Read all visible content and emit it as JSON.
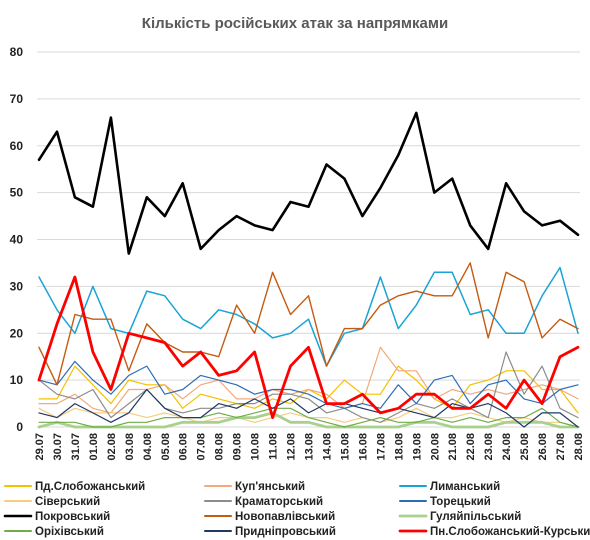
{
  "chart_data": {
    "type": "line",
    "title": "Кількість російських атак за напрямками",
    "xlabel": "",
    "ylabel": "",
    "ylim": [
      0,
      80
    ],
    "yticks": [
      0,
      10,
      20,
      30,
      40,
      50,
      60,
      70,
      80
    ],
    "grid": true,
    "legend_position": "bottom",
    "x": [
      "29.07",
      "30.07",
      "31.07",
      "01.08",
      "02.08",
      "03.08",
      "04.08",
      "05.08",
      "06.08",
      "07.08",
      "08.08",
      "09.08",
      "10.08",
      "11.08",
      "12.08",
      "13.08",
      "14.08",
      "15.08",
      "16.08",
      "17.08",
      "18.08",
      "19.08",
      "20.08",
      "21.08",
      "22.08",
      "23.08",
      "24.08",
      "25.08",
      "26.08",
      "27.08",
      "28.08"
    ],
    "x_tick_labels": [
      "29.07",
      "30.07",
      "31.07",
      "01.08",
      "02.08",
      "03.08",
      "04.08",
      "05.08",
      "06.08",
      "07.08",
      "08.08",
      "09.08",
      "10.08",
      "11.08",
      "12.08",
      "13.08",
      "14.08",
      "15.08",
      "16.08",
      "17.08",
      "18.08",
      "19.08",
      "20.08",
      "21.08",
      "22.08",
      "23.08",
      "24.08",
      "25.08",
      "26.08",
      "27.08",
      "28.08"
    ],
    "series": [
      {
        "name": "Пд.Слобожанський",
        "color": "#f5c000",
        "width": 1.2,
        "values": [
          6,
          6,
          13,
          9,
          5,
          10,
          9,
          9,
          4,
          7,
          6,
          5,
          4,
          6,
          5,
          8,
          6,
          10,
          7,
          7,
          13,
          10,
          6,
          4,
          9,
          10,
          12,
          12,
          8,
          8,
          3
        ]
      },
      {
        "name": "Куп'янський",
        "color": "#f2a97c",
        "width": 1.2,
        "values": [
          5,
          5,
          7,
          4,
          3,
          8,
          8,
          9,
          6,
          9,
          10,
          6,
          6,
          8,
          7,
          8,
          7,
          4,
          5,
          17,
          12,
          12,
          6,
          8,
          7,
          8,
          7,
          8,
          9,
          8,
          6
        ]
      },
      {
        "name": "Лиманський",
        "color": "#1aa3d6",
        "width": 1.5,
        "values": [
          32,
          25,
          20,
          30,
          21,
          20,
          29,
          28,
          23,
          21,
          25,
          24,
          22,
          19,
          20,
          23,
          13,
          20,
          21,
          32,
          21,
          26,
          33,
          33,
          24,
          25,
          20,
          20,
          28,
          34,
          20
        ]
      },
      {
        "name": "Сіверський",
        "color": "#f8cb7f",
        "width": 1.2,
        "values": [
          4,
          2,
          4,
          3,
          3,
          3,
          2,
          3,
          2,
          1,
          2,
          2,
          1,
          2,
          3,
          2,
          2,
          1,
          2,
          1,
          2,
          4,
          2,
          2,
          3,
          2,
          1,
          2,
          1,
          1,
          0
        ]
      },
      {
        "name": "Краматорський",
        "color": "#8c8c8c",
        "width": 1.2,
        "values": [
          10,
          7,
          6,
          8,
          2,
          5,
          8,
          4,
          3,
          4,
          4,
          5,
          5,
          7,
          7,
          6,
          3,
          4,
          2,
          1,
          3,
          5,
          4,
          6,
          4,
          2,
          16,
          7,
          13,
          4,
          2
        ]
      },
      {
        "name": "Торецький",
        "color": "#2e6db5",
        "width": 1.2,
        "values": [
          10,
          9,
          14,
          10,
          7,
          11,
          13,
          7,
          8,
          11,
          10,
          9,
          7,
          8,
          8,
          7,
          5,
          4,
          5,
          4,
          9,
          5,
          10,
          11,
          5,
          9,
          10,
          6,
          5,
          8,
          9
        ]
      },
      {
        "name": "Покровський",
        "color": "#000000",
        "width": 2.6,
        "values": [
          57,
          63,
          49,
          47,
          66,
          37,
          49,
          45,
          52,
          38,
          42,
          45,
          43,
          42,
          48,
          47,
          56,
          53,
          45,
          51,
          58,
          67,
          50,
          53,
          43,
          38,
          52,
          46,
          43,
          44,
          41
        ]
      },
      {
        "name": "Новопавлівський",
        "color": "#c55a11",
        "width": 1.4,
        "values": [
          17,
          9,
          24,
          23,
          23,
          12,
          22,
          18,
          16,
          16,
          15,
          26,
          20,
          33,
          24,
          28,
          13,
          21,
          21,
          26,
          28,
          29,
          28,
          28,
          35,
          19,
          33,
          31,
          19,
          23,
          21
        ]
      },
      {
        "name": "Гуляйпільський",
        "color": "#a9d18e",
        "width": 2.8,
        "values": [
          0,
          1,
          0,
          0,
          0,
          0,
          0,
          0,
          1,
          1,
          1,
          2,
          2,
          3,
          1,
          1,
          0,
          0,
          0,
          0,
          0,
          1,
          1,
          0,
          0,
          0,
          1,
          1,
          1,
          0,
          0
        ]
      },
      {
        "name": "Оріхівський",
        "color": "#70ad47",
        "width": 1.2,
        "values": [
          1,
          1,
          1,
          0,
          0,
          1,
          1,
          2,
          2,
          2,
          3,
          2,
          3,
          4,
          4,
          2,
          1,
          0,
          1,
          2,
          1,
          1,
          2,
          1,
          2,
          1,
          2,
          2,
          4,
          1,
          0
        ]
      },
      {
        "name": "Придніпровський",
        "color": "#1f3864",
        "width": 1.2,
        "values": [
          3,
          2,
          5,
          3,
          1,
          3,
          8,
          4,
          2,
          2,
          5,
          4,
          6,
          4,
          6,
          3,
          5,
          5,
          4,
          3,
          4,
          3,
          2,
          5,
          4,
          5,
          3,
          0,
          3,
          3,
          0
        ]
      },
      {
        "name": "Пн.Слобожанський-Курський",
        "color": "#ff0000",
        "width": 2.8,
        "values": [
          10,
          22,
          32,
          16,
          8,
          20,
          19,
          18,
          13,
          16,
          11,
          12,
          16,
          2,
          13,
          17,
          5,
          5,
          7,
          3,
          4,
          7,
          7,
          4,
          4,
          7,
          4,
          10,
          5,
          15,
          17
        ]
      }
    ]
  }
}
